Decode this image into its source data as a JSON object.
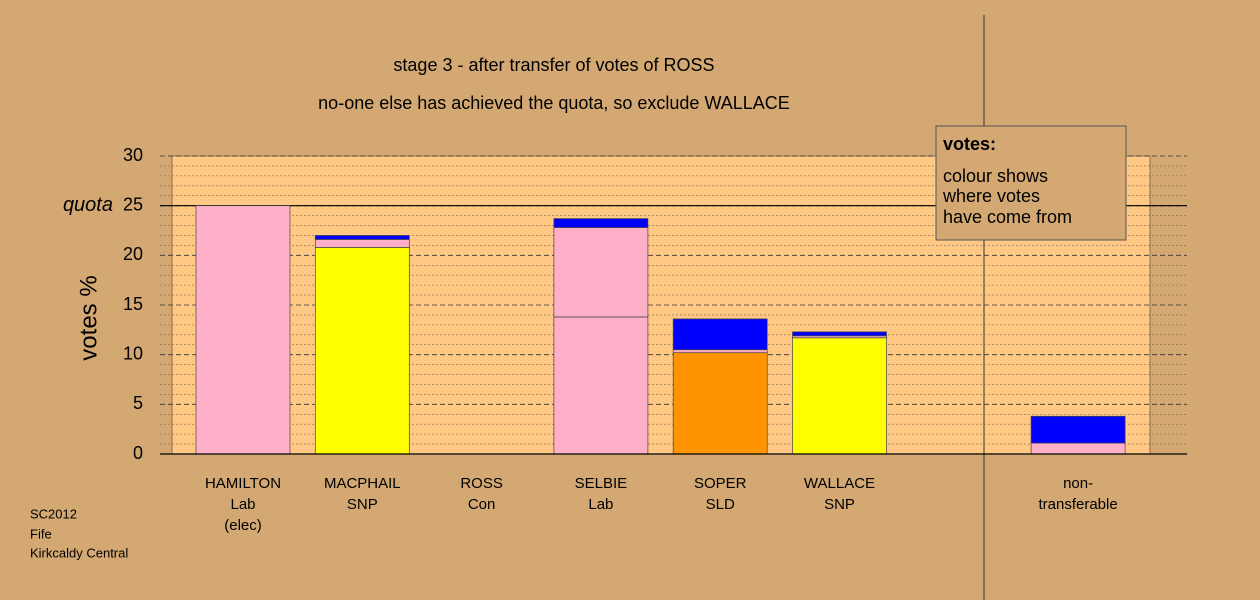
{
  "chart_data": {
    "type": "bar",
    "title": "stage 3 - after transfer of votes of ROSS",
    "subtitle": "no-one else has achieved the quota, so exclude WALLACE",
    "y_label": "votes %",
    "categories": [
      [
        "HAMILTON",
        "Lab",
        "(elec)"
      ],
      [
        "MACPHAIL",
        "SNP"
      ],
      [
        "ROSS",
        "Con"
      ],
      [
        "SELBIE",
        "Lab"
      ],
      [
        "SOPER",
        "SLD"
      ],
      [
        "WALLACE",
        "SNP"
      ],
      null,
      [
        "non-",
        "transferable"
      ]
    ],
    "series": [
      {
        "color": "#ffb0c8",
        "values": [
          25,
          0,
          0,
          13.8,
          0,
          0,
          null,
          0
        ]
      },
      {
        "color": "#ffff00",
        "values": [
          0,
          20.8,
          0,
          0,
          0,
          11.7,
          null,
          0
        ]
      },
      {
        "color": "#ff9400",
        "values": [
          0,
          0,
          0,
          0,
          10.2,
          0,
          null,
          0
        ]
      },
      {
        "color": "#ffb0c8",
        "values": [
          0,
          0.8,
          0,
          9.0,
          0.3,
          0.2,
          null,
          1.1
        ]
      },
      {
        "color": "#0000ff",
        "values": [
          0,
          0.4,
          0,
          0.9,
          3.1,
          0.4,
          null,
          2.7
        ]
      }
    ],
    "ylim": [
      0,
      30
    ],
    "yticks": [
      0,
      5,
      10,
      15,
      20,
      25,
      30
    ],
    "minor_yticks": [
      1,
      2,
      3,
      4,
      6,
      7,
      8,
      9,
      11,
      12,
      13,
      14,
      16,
      17,
      18,
      19,
      21,
      22,
      23,
      24,
      26,
      27,
      28,
      29
    ],
    "quota": {
      "value": 25,
      "label": "quota"
    },
    "legend_title": "votes:",
    "legend_lines": [
      "colour shows",
      "where votes",
      "have come from"
    ],
    "footnote": [
      "SC2012",
      "Fife",
      "Kirkcaldy Central"
    ]
  }
}
